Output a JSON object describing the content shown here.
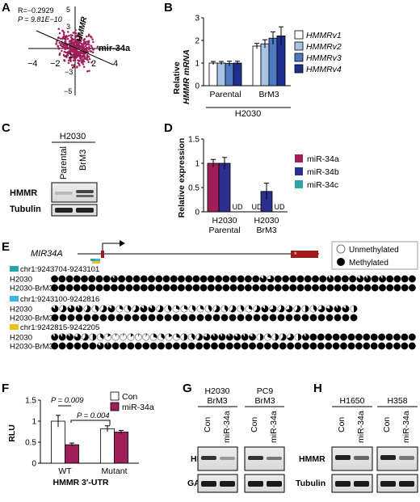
{
  "panel_letters": {
    "A": "A",
    "B": "B",
    "C": "C",
    "D": "D",
    "E": "E",
    "F": "F",
    "G": "G",
    "H": "H"
  },
  "panel_a": {
    "stat_r": "R=−0.2929",
    "stat_p": "P = 9.81E−10",
    "y_label": "HMMR",
    "x_label": "mir-34a",
    "ticks": {
      "xneg4": "−4",
      "xneg2": "−2",
      "x2": "2",
      "x4": "4",
      "y5": "5",
      "y3": "3",
      "yneg1": "−1",
      "yneg3": "−3",
      "yneg5": "−5"
    }
  },
  "chart_data": [
    {
      "panel": "B",
      "type": "bar",
      "ylabel": "Relative HMMR mRNA",
      "xlabel": "H2030",
      "categories": [
        "Parental",
        "BrM3"
      ],
      "ylim": [
        0,
        3
      ],
      "yticks": [
        0,
        1,
        2,
        3
      ],
      "series": [
        {
          "name": "HMMRv1",
          "color": "#ffffff",
          "values": [
            1.0,
            1.75
          ],
          "errors": [
            0.07,
            0.12
          ]
        },
        {
          "name": "HMMRv2",
          "color": "#a8c3e6",
          "values": [
            1.0,
            1.85
          ],
          "errors": [
            0.07,
            0.18
          ]
        },
        {
          "name": "HMMRv3",
          "color": "#4f79c2",
          "values": [
            0.98,
            2.1
          ],
          "errors": [
            0.1,
            0.28
          ]
        },
        {
          "name": "HMMRv4",
          "color": "#1f2f8e",
          "values": [
            1.0,
            2.2
          ],
          "errors": [
            0.08,
            0.4
          ]
        }
      ]
    },
    {
      "panel": "D",
      "type": "bar",
      "ylabel": "Relative expression",
      "categories": [
        "H2030 Parental",
        "H2030 BrM3"
      ],
      "ylim": [
        0,
        1.5
      ],
      "yticks": [
        0,
        0.5,
        1,
        1.5
      ],
      "series": [
        {
          "name": "miR-34a",
          "color": "#a01e5a",
          "values": [
            1.0,
            null
          ],
          "errors": [
            0.08,
            0
          ]
        },
        {
          "name": "miR-34b",
          "color": "#2b2f8f",
          "values": [
            1.0,
            0.42
          ],
          "errors": [
            0.12,
            0.17
          ]
        },
        {
          "name": "miR-34c",
          "color": "#2aa5a8",
          "values": [
            null,
            null
          ],
          "errors": [
            0,
            0
          ]
        }
      ],
      "na_label": "UD"
    },
    {
      "panel": "F",
      "type": "bar",
      "ylabel": "RLU",
      "xlabel": "HMMR 3′-UTR",
      "categories": [
        "WT",
        "Mutant"
      ],
      "ylim": [
        0,
        1.5
      ],
      "yticks": [
        0,
        0.5,
        1,
        1.5
      ],
      "series": [
        {
          "name": "Con",
          "color": "#ffffff",
          "values": [
            1.0,
            0.82
          ],
          "errors": [
            0.14,
            0.07
          ]
        },
        {
          "name": "miR-34a",
          "color": "#a01e5a",
          "values": [
            0.44,
            0.74
          ],
          "errors": [
            0.04,
            0.04
          ]
        }
      ],
      "annotations": [
        "P = 0.009",
        "P = 0.004"
      ]
    }
  ],
  "panel_c": {
    "header": "H2030",
    "lanes": [
      "Parental",
      "BrM3"
    ],
    "rows": [
      "HMMR",
      "Tubulin"
    ]
  },
  "panel_e": {
    "gene": "MIR34A",
    "legend": {
      "unmethylated": "Unmethylated",
      "methylated": "Methylated"
    },
    "regions": [
      {
        "label": "chr1:9243704-9243101",
        "color": "#2aa5a8",
        "rows": [
          {
            "name": "H2030",
            "m": [
              1,
              1,
              1,
              1,
              1,
              1,
              1,
              1,
              0.9,
              1,
              1,
              1,
              1,
              1,
              1,
              1,
              1,
              1,
              1,
              1,
              1,
              1,
              1,
              1,
              1,
              1,
              1,
              1,
              0.85,
              0.75,
              1,
              1,
              1,
              1,
              1,
              1,
              1,
              0.9,
              1,
              1,
              1,
              0.85,
              0.9,
              1,
              0.9,
              1,
              1,
              1,
              1
            ]
          },
          {
            "name": "H2030-BrM3",
            "m": [
              1,
              1,
              1,
              1,
              1,
              1,
              1,
              1,
              1,
              1,
              1,
              1,
              1,
              1,
              1,
              1,
              1,
              1,
              1,
              1,
              1,
              1,
              1,
              1,
              1,
              1,
              1,
              1,
              1,
              1,
              1,
              1,
              1,
              1,
              1,
              1,
              1,
              1,
              1,
              1,
              1,
              1,
              1,
              1,
              1,
              1,
              1,
              1,
              1
            ]
          }
        ]
      },
      {
        "label": "chr1:9243100-9242816",
        "color": "#3ab6e4",
        "rows": [
          {
            "name": "H2030",
            "m": [
              0.85,
              0.6,
              0.85,
              0.9,
              0.6,
              0.4,
              0.6,
              0.85,
              0.3,
              0.4,
              0.6,
              0.85,
              0.85,
              0.6,
              0.4,
              0.3,
              0.3,
              0.4,
              0.3,
              0.4,
              0.6,
              0.4,
              0.6,
              0.4,
              0.3,
              0.6,
              0.85,
              0.7,
              0.6,
              0.7,
              0.6,
              0.5,
              0.4,
              0.7,
              0.8,
              0.9,
              0.85,
              0.5
            ]
          },
          {
            "name": "H2030-BrM3",
            "m": [
              1,
              1,
              1,
              1,
              1,
              1,
              1,
              1,
              1,
              1,
              1,
              1,
              1,
              1,
              1,
              1,
              1,
              1,
              1,
              1,
              1,
              1,
              1,
              1,
              1,
              1,
              1,
              1,
              1,
              1,
              1,
              1,
              1,
              1,
              1,
              1,
              1,
              1
            ]
          }
        ]
      },
      {
        "label": "chr1:9242815-9242205",
        "color": "#f0c020",
        "rows": [
          {
            "name": "H2030",
            "m": [
              0.9,
              0.9,
              0.9,
              0.8,
              0.6,
              0.5,
              0.35,
              0.15,
              0.05,
              0.05,
              0.15,
              0.05,
              0.05,
              0.3,
              0.35,
              0.2,
              0.3,
              0.5,
              0.4,
              0.6,
              0.8,
              0.9,
              0.9,
              0.9,
              0.85,
              0.9,
              0.85,
              0.5,
              0.3,
              0.5,
              0.6,
              0.7,
              0.5,
              0.9,
              1,
              1,
              1,
              1,
              1,
              1,
              1,
              1,
              1,
              1,
              1,
              1,
              1,
              1
            ]
          },
          {
            "name": "H2030-BrM3",
            "m": [
              1,
              1,
              1,
              1,
              1,
              1,
              0.85,
              0.95,
              1,
              1,
              1,
              1,
              1,
              1,
              1,
              1,
              1,
              1,
              1,
              1,
              1,
              1,
              1,
              1,
              1,
              1,
              1,
              1,
              1,
              1,
              1,
              1,
              1,
              1,
              1,
              1,
              1,
              1,
              1,
              1,
              1,
              1,
              1,
              1,
              1,
              1,
              1,
              1
            ]
          }
        ]
      }
    ]
  },
  "panel_g": {
    "groups": [
      "H2030",
      "BrM3",
      "PC9",
      "BrM3"
    ],
    "lanes": [
      "Con",
      "miR-34a",
      "Con",
      "miR-34a"
    ],
    "rows": [
      "HMMR",
      "GAPDH"
    ]
  },
  "panel_h": {
    "groups": [
      "H1650",
      "H358"
    ],
    "lanes": [
      "Con",
      "miR-34a",
      "Con",
      "miR-34a"
    ],
    "rows": [
      "HMMR",
      "Tubulin"
    ]
  }
}
